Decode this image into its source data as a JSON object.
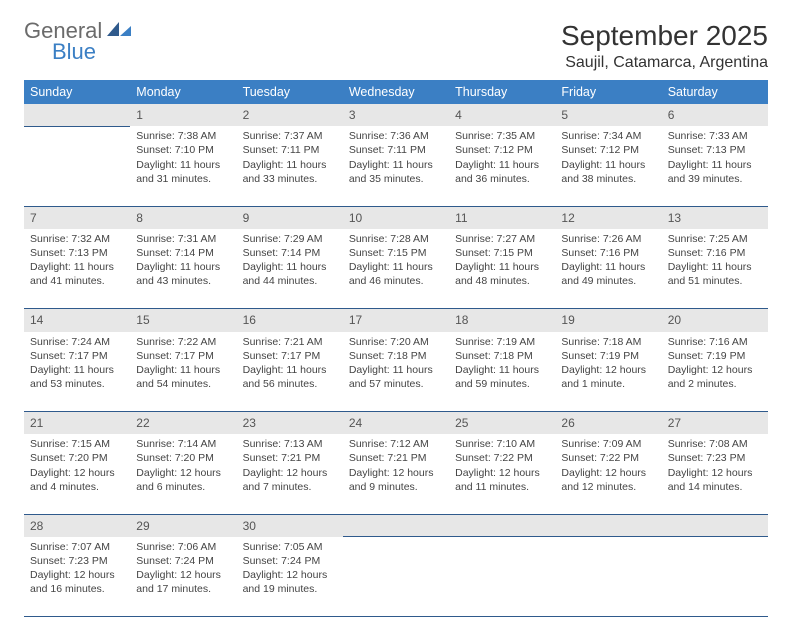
{
  "brand": {
    "part1": "General",
    "part2": "Blue"
  },
  "title": "September 2025",
  "location": "Saujil, Catamarca, Argentina",
  "colors": {
    "header_bg": "#3b7fc4",
    "header_text": "#ffffff",
    "daynum_bg": "#e7e7e7",
    "cell_border": "#2f5a8c",
    "body_text": "#444444",
    "logo_gray": "#6b6b6b",
    "logo_blue": "#3b7fc4",
    "background": "#ffffff"
  },
  "typography": {
    "title_fontsize": 28,
    "location_fontsize": 16,
    "header_fontsize": 12.5,
    "cell_fontsize": 10.5,
    "daynum_fontsize": 12
  },
  "day_headers": [
    "Sunday",
    "Monday",
    "Tuesday",
    "Wednesday",
    "Thursday",
    "Friday",
    "Saturday"
  ],
  "weeks": [
    {
      "nums": [
        "",
        "1",
        "2",
        "3",
        "4",
        "5",
        "6"
      ],
      "cells": [
        null,
        {
          "sunrise": "Sunrise: 7:38 AM",
          "sunset": "Sunset: 7:10 PM",
          "day1": "Daylight: 11 hours",
          "day2": "and 31 minutes."
        },
        {
          "sunrise": "Sunrise: 7:37 AM",
          "sunset": "Sunset: 7:11 PM",
          "day1": "Daylight: 11 hours",
          "day2": "and 33 minutes."
        },
        {
          "sunrise": "Sunrise: 7:36 AM",
          "sunset": "Sunset: 7:11 PM",
          "day1": "Daylight: 11 hours",
          "day2": "and 35 minutes."
        },
        {
          "sunrise": "Sunrise: 7:35 AM",
          "sunset": "Sunset: 7:12 PM",
          "day1": "Daylight: 11 hours",
          "day2": "and 36 minutes."
        },
        {
          "sunrise": "Sunrise: 7:34 AM",
          "sunset": "Sunset: 7:12 PM",
          "day1": "Daylight: 11 hours",
          "day2": "and 38 minutes."
        },
        {
          "sunrise": "Sunrise: 7:33 AM",
          "sunset": "Sunset: 7:13 PM",
          "day1": "Daylight: 11 hours",
          "day2": "and 39 minutes."
        }
      ]
    },
    {
      "nums": [
        "7",
        "8",
        "9",
        "10",
        "11",
        "12",
        "13"
      ],
      "cells": [
        {
          "sunrise": "Sunrise: 7:32 AM",
          "sunset": "Sunset: 7:13 PM",
          "day1": "Daylight: 11 hours",
          "day2": "and 41 minutes."
        },
        {
          "sunrise": "Sunrise: 7:31 AM",
          "sunset": "Sunset: 7:14 PM",
          "day1": "Daylight: 11 hours",
          "day2": "and 43 minutes."
        },
        {
          "sunrise": "Sunrise: 7:29 AM",
          "sunset": "Sunset: 7:14 PM",
          "day1": "Daylight: 11 hours",
          "day2": "and 44 minutes."
        },
        {
          "sunrise": "Sunrise: 7:28 AM",
          "sunset": "Sunset: 7:15 PM",
          "day1": "Daylight: 11 hours",
          "day2": "and 46 minutes."
        },
        {
          "sunrise": "Sunrise: 7:27 AM",
          "sunset": "Sunset: 7:15 PM",
          "day1": "Daylight: 11 hours",
          "day2": "and 48 minutes."
        },
        {
          "sunrise": "Sunrise: 7:26 AM",
          "sunset": "Sunset: 7:16 PM",
          "day1": "Daylight: 11 hours",
          "day2": "and 49 minutes."
        },
        {
          "sunrise": "Sunrise: 7:25 AM",
          "sunset": "Sunset: 7:16 PM",
          "day1": "Daylight: 11 hours",
          "day2": "and 51 minutes."
        }
      ]
    },
    {
      "nums": [
        "14",
        "15",
        "16",
        "17",
        "18",
        "19",
        "20"
      ],
      "cells": [
        {
          "sunrise": "Sunrise: 7:24 AM",
          "sunset": "Sunset: 7:17 PM",
          "day1": "Daylight: 11 hours",
          "day2": "and 53 minutes."
        },
        {
          "sunrise": "Sunrise: 7:22 AM",
          "sunset": "Sunset: 7:17 PM",
          "day1": "Daylight: 11 hours",
          "day2": "and 54 minutes."
        },
        {
          "sunrise": "Sunrise: 7:21 AM",
          "sunset": "Sunset: 7:17 PM",
          "day1": "Daylight: 11 hours",
          "day2": "and 56 minutes."
        },
        {
          "sunrise": "Sunrise: 7:20 AM",
          "sunset": "Sunset: 7:18 PM",
          "day1": "Daylight: 11 hours",
          "day2": "and 57 minutes."
        },
        {
          "sunrise": "Sunrise: 7:19 AM",
          "sunset": "Sunset: 7:18 PM",
          "day1": "Daylight: 11 hours",
          "day2": "and 59 minutes."
        },
        {
          "sunrise": "Sunrise: 7:18 AM",
          "sunset": "Sunset: 7:19 PM",
          "day1": "Daylight: 12 hours",
          "day2": "and 1 minute."
        },
        {
          "sunrise": "Sunrise: 7:16 AM",
          "sunset": "Sunset: 7:19 PM",
          "day1": "Daylight: 12 hours",
          "day2": "and 2 minutes."
        }
      ]
    },
    {
      "nums": [
        "21",
        "22",
        "23",
        "24",
        "25",
        "26",
        "27"
      ],
      "cells": [
        {
          "sunrise": "Sunrise: 7:15 AM",
          "sunset": "Sunset: 7:20 PM",
          "day1": "Daylight: 12 hours",
          "day2": "and 4 minutes."
        },
        {
          "sunrise": "Sunrise: 7:14 AM",
          "sunset": "Sunset: 7:20 PM",
          "day1": "Daylight: 12 hours",
          "day2": "and 6 minutes."
        },
        {
          "sunrise": "Sunrise: 7:13 AM",
          "sunset": "Sunset: 7:21 PM",
          "day1": "Daylight: 12 hours",
          "day2": "and 7 minutes."
        },
        {
          "sunrise": "Sunrise: 7:12 AM",
          "sunset": "Sunset: 7:21 PM",
          "day1": "Daylight: 12 hours",
          "day2": "and 9 minutes."
        },
        {
          "sunrise": "Sunrise: 7:10 AM",
          "sunset": "Sunset: 7:22 PM",
          "day1": "Daylight: 12 hours",
          "day2": "and 11 minutes."
        },
        {
          "sunrise": "Sunrise: 7:09 AM",
          "sunset": "Sunset: 7:22 PM",
          "day1": "Daylight: 12 hours",
          "day2": "and 12 minutes."
        },
        {
          "sunrise": "Sunrise: 7:08 AM",
          "sunset": "Sunset: 7:23 PM",
          "day1": "Daylight: 12 hours",
          "day2": "and 14 minutes."
        }
      ]
    },
    {
      "nums": [
        "28",
        "29",
        "30",
        "",
        "",
        "",
        ""
      ],
      "cells": [
        {
          "sunrise": "Sunrise: 7:07 AM",
          "sunset": "Sunset: 7:23 PM",
          "day1": "Daylight: 12 hours",
          "day2": "and 16 minutes."
        },
        {
          "sunrise": "Sunrise: 7:06 AM",
          "sunset": "Sunset: 7:24 PM",
          "day1": "Daylight: 12 hours",
          "day2": "and 17 minutes."
        },
        {
          "sunrise": "Sunrise: 7:05 AM",
          "sunset": "Sunset: 7:24 PM",
          "day1": "Daylight: 12 hours",
          "day2": "and 19 minutes."
        },
        null,
        null,
        null,
        null
      ]
    }
  ]
}
